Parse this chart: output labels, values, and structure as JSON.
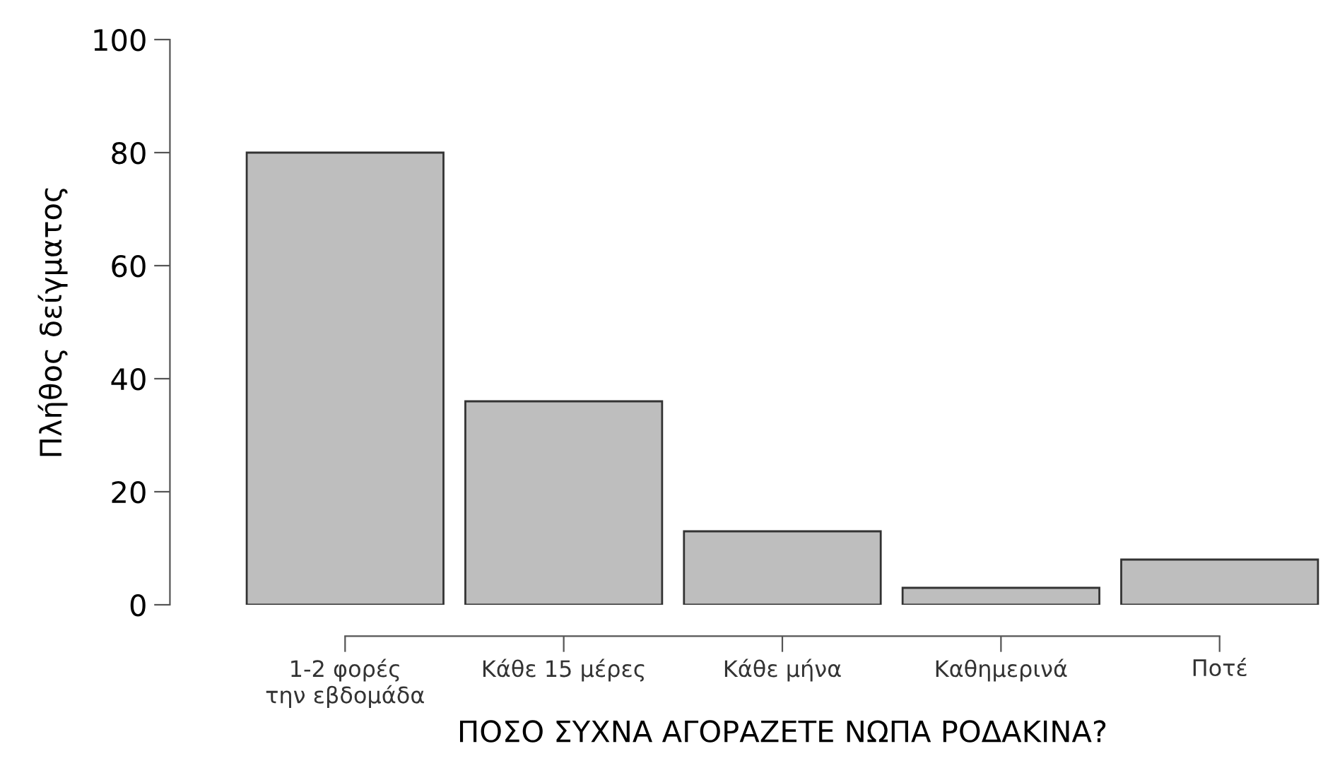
{
  "chart_data": {
    "type": "bar",
    "xlabel": "ΠΟΣΟ ΣΥΧΝΑ ΑΓΟΡΑΖΕΤΕ ΝΩΠΑ ΡΟΔΑΚΙΝΑ?",
    "ylabel": "Πλήθος δείγματος",
    "categories": [
      "1-2 φορές\nτην εβδομάδα",
      "Κάθε 15 μέρες",
      "Κάθε μήνα",
      "Καθημερινά",
      "Ποτέ"
    ],
    "values": [
      80,
      36,
      13,
      3,
      8
    ],
    "color": "#bebebe",
    "ylim": [
      0,
      100
    ],
    "yticks": [
      0,
      20,
      40,
      60,
      80,
      100
    ],
    "grid": false
  }
}
